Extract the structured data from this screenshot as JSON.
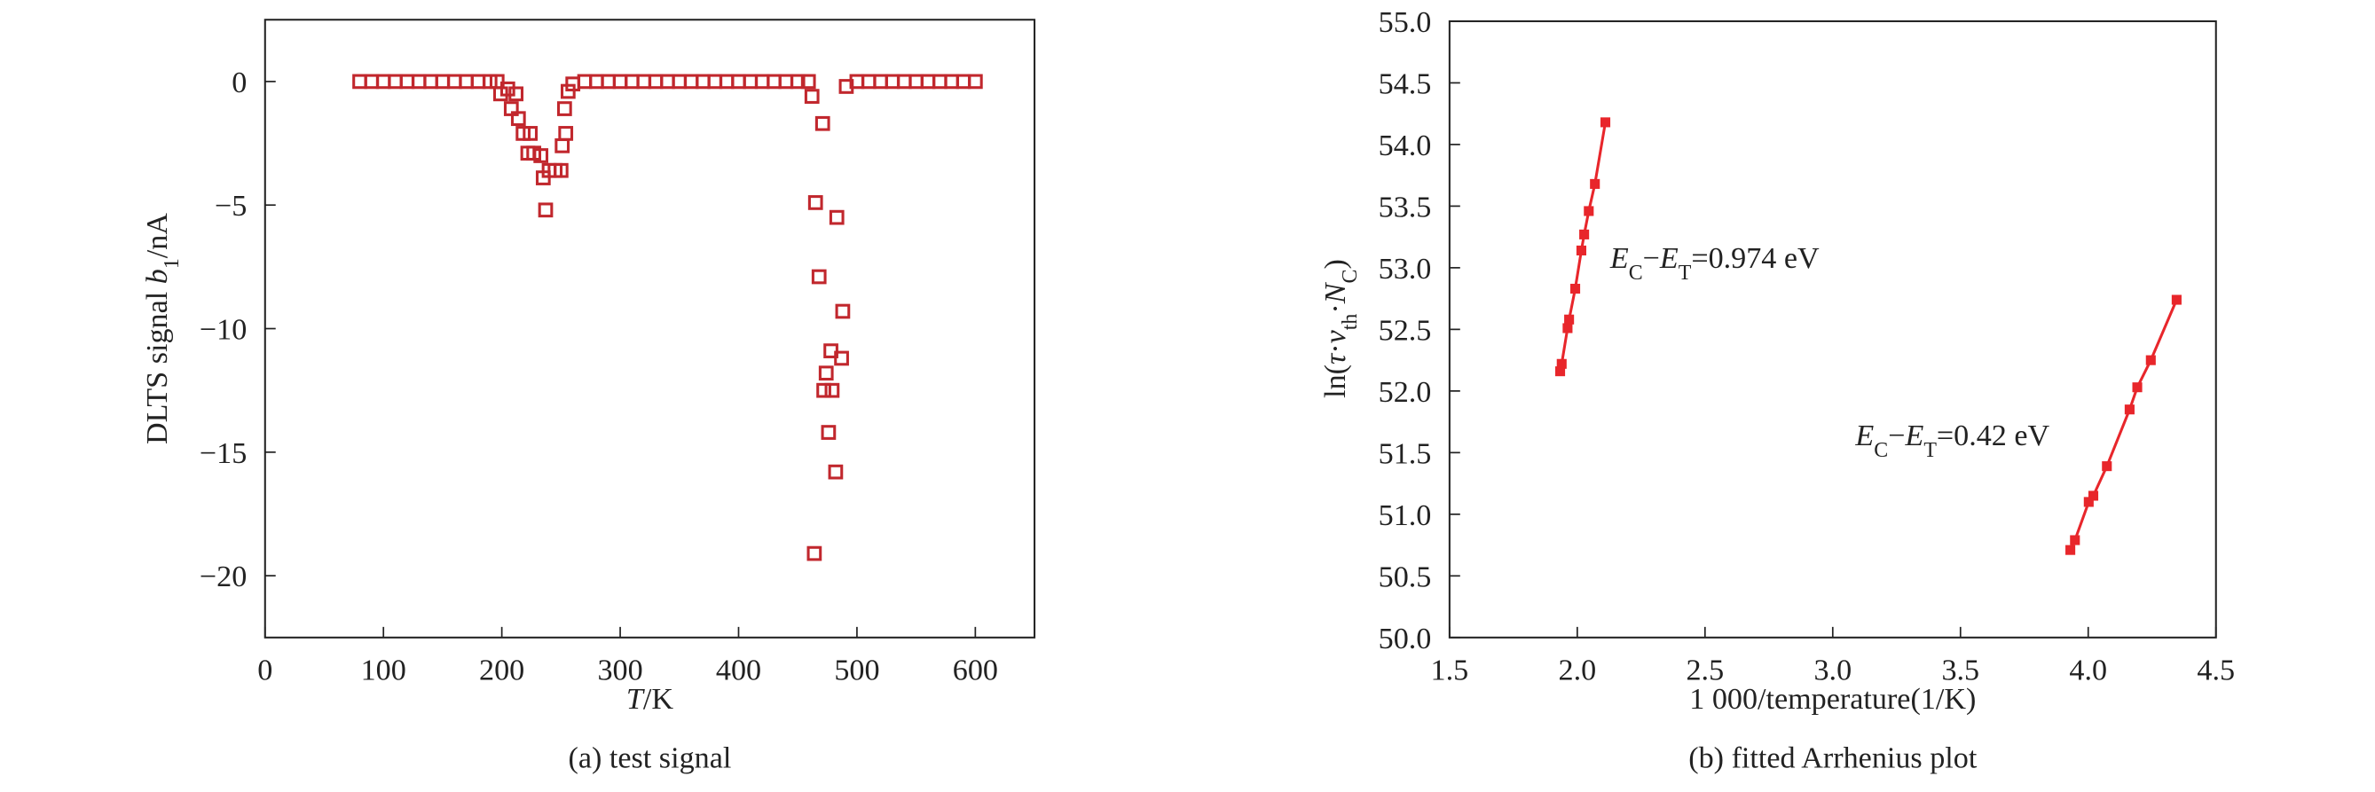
{
  "chart_data": [
    {
      "type": "scatter",
      "caption": "(a) test signal",
      "xlabel": [
        {
          "t": "T",
          "s": "i"
        },
        {
          "t": "/K"
        }
      ],
      "ylabel": [
        {
          "t": "DLTS signal "
        },
        {
          "t": "b",
          "s": "i"
        },
        {
          "t": "1",
          "s": "sub"
        },
        {
          "t": "/nA"
        }
      ],
      "xlim": [
        0,
        650
      ],
      "xticks": [
        0,
        100,
        200,
        300,
        400,
        500,
        600
      ],
      "ylim": [
        -22.5,
        2.5
      ],
      "yticks": [
        0,
        {
          "value": -5,
          "label": "−5"
        },
        {
          "value": -10,
          "label": "−10"
        },
        {
          "value": -15,
          "label": "−15"
        },
        {
          "value": -20,
          "label": "−20"
        }
      ],
      "marker": "open-square",
      "series": [
        {
          "color": "#c1272d",
          "x": [
            80,
            90,
            100,
            110,
            120,
            130,
            140,
            150,
            160,
            170,
            180,
            190,
            196,
            199,
            205,
            208,
            212,
            214,
            218,
            222,
            224,
            227,
            233,
            235,
            237,
            240,
            245,
            250,
            251,
            253,
            254,
            256,
            260,
            270,
            280,
            290,
            300,
            310,
            320,
            330,
            340,
            350,
            360,
            370,
            380,
            390,
            400,
            410,
            420,
            430,
            440,
            450,
            459,
            462,
            464,
            465,
            468,
            471,
            472,
            474,
            476,
            478,
            479,
            482,
            483,
            487,
            488,
            491,
            500,
            510,
            520,
            530,
            540,
            550,
            560,
            570,
            580,
            590,
            600
          ],
          "values": [
            0,
            0,
            0,
            0,
            0,
            0,
            0,
            0,
            0,
            0,
            0,
            0,
            0,
            -0.5,
            -0.3,
            -1.1,
            -0.5,
            -1.5,
            -2.1,
            -2.9,
            -2.1,
            -2.9,
            -3.0,
            -3.9,
            -5.2,
            -3.6,
            -3.6,
            -3.6,
            -2.6,
            -1.1,
            -2.1,
            -0.4,
            -0.1,
            0,
            0,
            0,
            0,
            0,
            0,
            0,
            0,
            0,
            0,
            0,
            0,
            0,
            0,
            0,
            0,
            0,
            0,
            0,
            0,
            -0.6,
            -19.1,
            -4.9,
            -7.9,
            -1.7,
            -12.5,
            -11.8,
            -14.2,
            -10.9,
            -12.5,
            -15.8,
            -5.5,
            -11.2,
            -9.3,
            -0.2,
            0,
            0,
            0,
            0,
            0,
            0,
            0,
            0,
            0,
            0,
            0
          ]
        }
      ]
    },
    {
      "type": "line",
      "caption": "(b) fitted Arrhenius plot",
      "xlabel": [
        {
          "t": "1 000/temperature(1/K)"
        }
      ],
      "ylabel": [
        {
          "t": "ln("
        },
        {
          "t": "τ",
          "s": "i"
        },
        {
          "t": "·"
        },
        {
          "t": "v",
          "s": "i"
        },
        {
          "t": "th",
          "s": "sub"
        },
        {
          "t": "·"
        },
        {
          "t": "N",
          "s": "i"
        },
        {
          "t": "C",
          "s": "sub"
        },
        {
          "t": ")"
        }
      ],
      "xlim": [
        1.5,
        4.5
      ],
      "xticks": [
        1.5,
        {
          "value": 2,
          "label": "2.0"
        },
        2.5,
        {
          "value": 3,
          "label": "3.0"
        },
        3.5,
        {
          "value": 4,
          "label": "4.0"
        },
        4.5
      ],
      "ylim": [
        50,
        55
      ],
      "yticks": [
        {
          "value": 50,
          "label": "50.0"
        },
        50.5,
        {
          "value": 51,
          "label": "51.0"
        },
        51.5,
        {
          "value": 52,
          "label": "52.0"
        },
        52.5,
        {
          "value": 53,
          "label": "53.0"
        },
        53.5,
        {
          "value": 54,
          "label": "54.0"
        },
        54.5,
        {
          "value": 55,
          "label": "55.0"
        }
      ],
      "marker": "square",
      "annotations": [
        [
          {
            "t": "E",
            "s": "i"
          },
          {
            "t": "C",
            "s": "sub"
          },
          {
            "t": "−"
          },
          {
            "t": "E",
            "s": "i"
          },
          {
            "t": "T",
            "s": "sub"
          },
          {
            "t": "=0.974 eV"
          }
        ],
        [
          {
            "t": "E",
            "s": "i"
          },
          {
            "t": "C",
            "s": "sub"
          },
          {
            "t": "−"
          },
          {
            "t": "E",
            "s": "i"
          },
          {
            "t": "T",
            "s": "sub"
          },
          {
            "t": "=0.42 eV"
          }
        ]
      ],
      "series": [
        {
          "color": "#e8262b",
          "x": [
            1.933,
            1.939,
            1.962,
            1.968,
            1.992,
            2.016,
            2.027,
            2.045,
            2.069,
            2.11
          ],
          "values": [
            52.16,
            52.22,
            52.51,
            52.58,
            52.83,
            53.14,
            53.27,
            53.46,
            53.68,
            54.18
          ]
        },
        {
          "color": "#e8262b",
          "x": [
            3.93,
            3.948,
            4.002,
            4.02,
            4.073,
            4.162,
            4.192,
            4.245,
            4.346
          ],
          "values": [
            50.71,
            50.79,
            51.1,
            51.15,
            51.39,
            51.85,
            52.03,
            52.25,
            52.74
          ]
        }
      ]
    }
  ]
}
